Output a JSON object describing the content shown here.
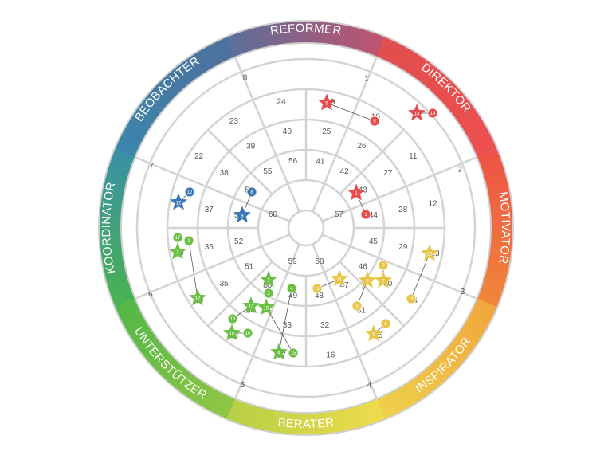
{
  "types": [
    {
      "key": "reformer",
      "label": "REFORMER"
    },
    {
      "key": "direktor",
      "label": "DIREKTOR"
    },
    {
      "key": "motivator",
      "label": "MOTIVATOR"
    },
    {
      "key": "inspirator",
      "label": "INSPIRATOR"
    },
    {
      "key": "berater",
      "label": "BERATER"
    },
    {
      "key": "unterstutzer",
      "label": "UNTERSTÜTZER"
    },
    {
      "key": "koordinator",
      "label": "KOORDINATOR"
    },
    {
      "key": "beobachter",
      "label": "BEOBACHTER"
    }
  ],
  "position_numbers": [
    "1",
    "2",
    "3",
    "4",
    "5",
    "6",
    "7",
    "8",
    "9",
    "10",
    "11",
    "12",
    "13",
    "14",
    "15",
    "16",
    "17",
    "18",
    "19",
    "20",
    "21",
    "22",
    "23",
    "24",
    "25",
    "26",
    "27",
    "28",
    "29",
    "30",
    "31",
    "32",
    "33",
    "34",
    "35",
    "36",
    "37",
    "38",
    "39",
    "40",
    "41",
    "42",
    "43",
    "44",
    "45",
    "46",
    "47",
    "48",
    "49",
    "50",
    "51",
    "52",
    "53",
    "54",
    "55",
    "56",
    "57",
    "58",
    "59",
    "60"
  ],
  "colors": {
    "red": "#e84b4b",
    "blue": "#3b78b5",
    "green": "#6cbf45",
    "yellow": "#e8c547",
    "ring_line": "#d3d3d3",
    "border": "#cfcfcf"
  },
  "markers": [
    {
      "group": "red",
      "star": "5",
      "circle": "5"
    },
    {
      "group": "red",
      "star": "14",
      "circle": "14"
    },
    {
      "group": "red",
      "star": "1",
      "circle": "1"
    },
    {
      "group": "blue",
      "star": "12",
      "circle": "12"
    },
    {
      "group": "blue",
      "star": "8",
      "circle": "8"
    },
    {
      "group": "green",
      "star": "2",
      "circle": "17"
    },
    {
      "group": "green",
      "star": "17",
      "circle": "2"
    },
    {
      "group": "green",
      "star": "3",
      "circle": "3"
    },
    {
      "group": "green",
      "star": "13",
      "circle": "13"
    },
    {
      "group": "green",
      "star": "15",
      "circle": "15"
    },
    {
      "group": "green",
      "star": "10",
      "circle": "10"
    },
    {
      "group": "green",
      "star": "4",
      "circle": "4"
    },
    {
      "group": "yellow",
      "star": "11",
      "circle": "11"
    },
    {
      "group": "yellow",
      "star": "9",
      "circle": "9"
    },
    {
      "group": "yellow",
      "star": "7",
      "circle": "7"
    },
    {
      "group": "yellow",
      "star": "16",
      "circle": "16"
    },
    {
      "group": "yellow",
      "star": "6",
      "circle": "6"
    }
  ]
}
